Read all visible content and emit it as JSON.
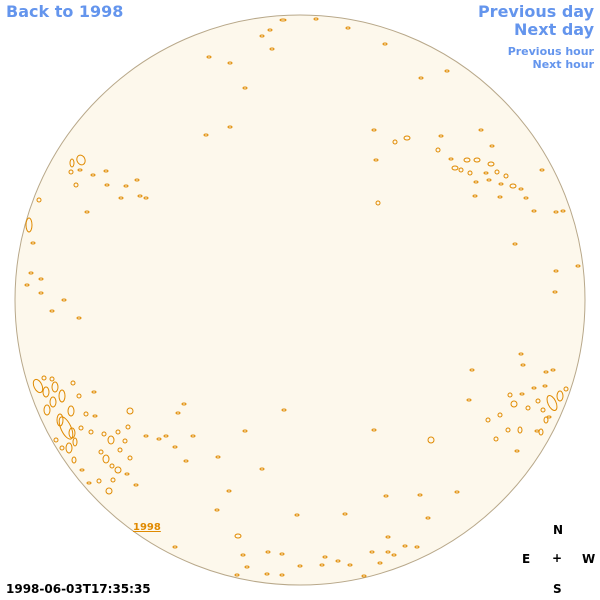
{
  "nav": {
    "back_label": "Back to 1998",
    "prev_day_label": "Previous day",
    "next_day_label": "Next day",
    "prev_hour_label": "Previous hour",
    "next_hour_label": "Next hour"
  },
  "disk": {
    "fill_color": "#fdf8ec",
    "limb_color": "#b8a88a",
    "contour_color": "#e08a00"
  },
  "year_link": "1998",
  "timestamp": "1998-06-03T17:35:35",
  "compass": {
    "north": "N",
    "east": "E",
    "center": "+",
    "west": "W",
    "south": "S"
  }
}
